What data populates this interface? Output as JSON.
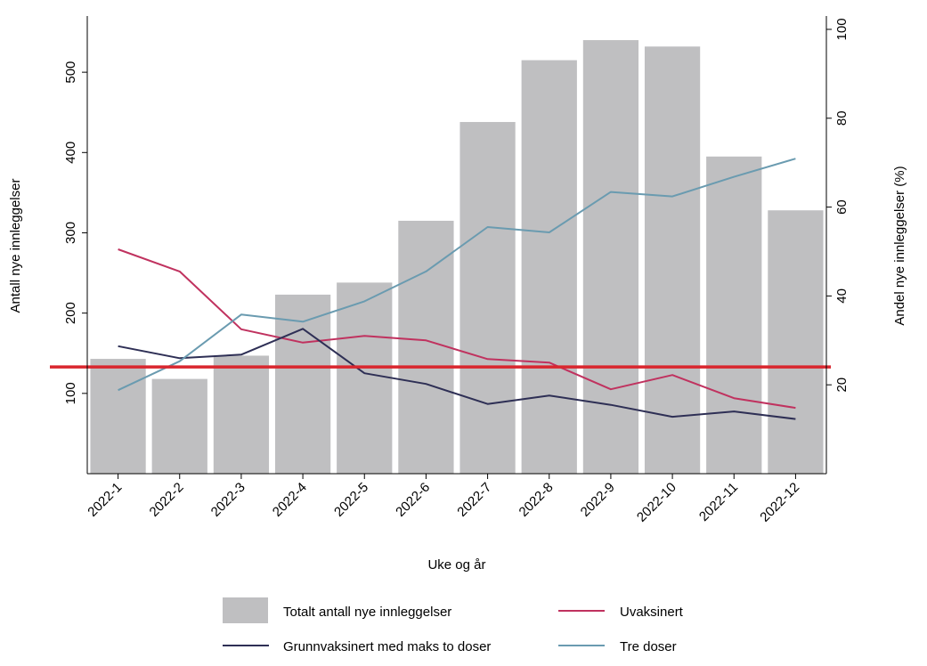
{
  "chart_data": {
    "type": "bar",
    "categories": [
      "2022-1",
      "2022-2",
      "2022-3",
      "2022-4",
      "2022-5",
      "2022-6",
      "2022-7",
      "2022-8",
      "2022-9",
      "2022-10",
      "2022-11",
      "2022-12"
    ],
    "xlabel": "Uke og år",
    "ylabel": "Antall nye innleggelser",
    "y2label": "Andel nye innleggelser (%)",
    "ylim": [
      0,
      570
    ],
    "y2lim": [
      0,
      103
    ],
    "yticks": [
      100,
      200,
      300,
      400,
      500
    ],
    "y2ticks": [
      20,
      40,
      60,
      80,
      100
    ],
    "bars": {
      "name": "Totalt antall nye innleggelser",
      "color": "#bfbfc1",
      "values": [
        143,
        118,
        147,
        223,
        238,
        315,
        438,
        515,
        540,
        532,
        395,
        328
      ]
    },
    "series": [
      {
        "name": "Uvaksinert",
        "color": "#c0325f",
        "axis": "right",
        "values": [
          50.5,
          45.5,
          32.5,
          29.5,
          31,
          30,
          25.8,
          25,
          19,
          22.2,
          17,
          14.8
        ]
      },
      {
        "name": "Grunnvaksinert med maks to doser",
        "color": "#2e2f55",
        "axis": "right",
        "values": [
          28.7,
          26,
          26.8,
          32.6,
          22.6,
          20.2,
          15.7,
          17.6,
          15.5,
          12.8,
          14,
          12.3
        ]
      },
      {
        "name": "Tre doser",
        "color": "#6a9bb0",
        "axis": "right",
        "values": [
          18.8,
          25.3,
          35.8,
          34.2,
          38.8,
          45.5,
          55.5,
          54.3,
          63.4,
          62.4,
          66.8,
          70.9
        ]
      }
    ],
    "reference_line": {
      "color": "#d9262e",
      "value": 133,
      "axis": "left"
    },
    "legend_position": "bottom"
  }
}
